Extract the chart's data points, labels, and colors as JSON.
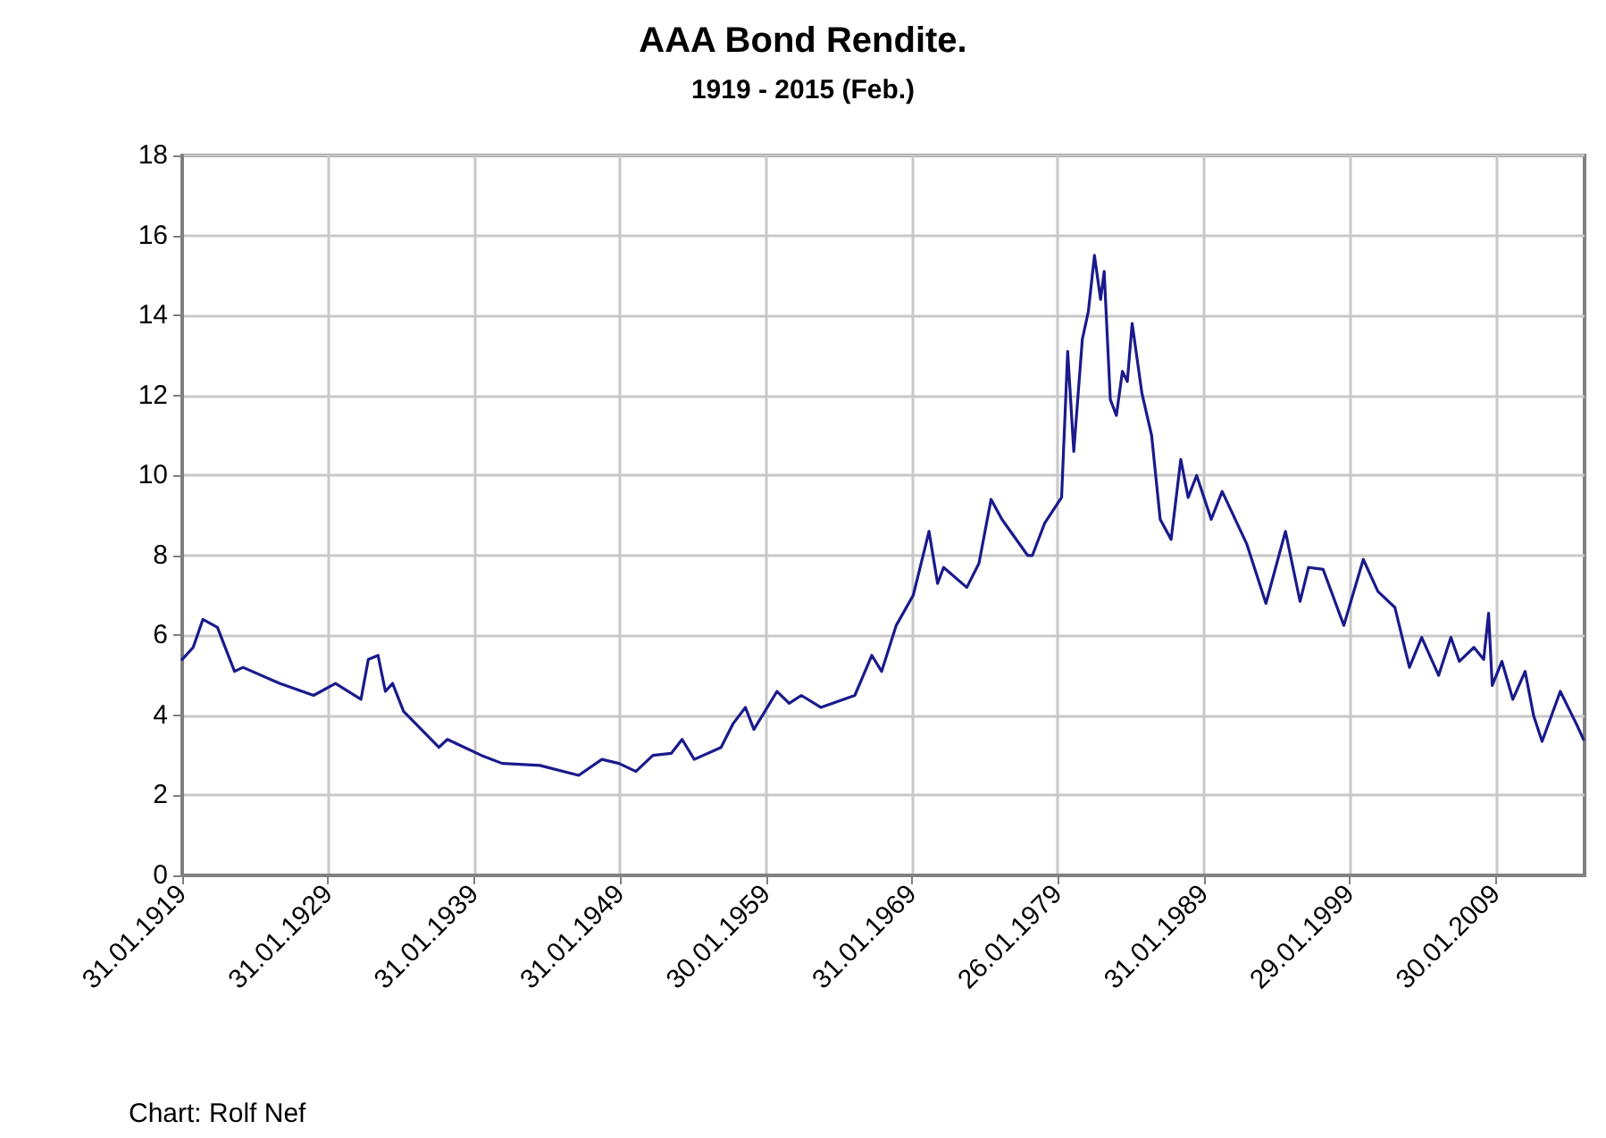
{
  "chart_data": {
    "type": "line",
    "title": "AAA Bond Rendite.",
    "subtitle": "1919 - 2015 (Feb.)",
    "annotations": [
      "Chart: Rolf Nef"
    ],
    "x": [
      "1919-02",
      "1919-11",
      "1920-07",
      "1921-07",
      "1922-09",
      "1923-04",
      "1925-10",
      "1928-02",
      "1929-08",
      "1931-05",
      "1931-11",
      "1932-07",
      "1933-01",
      "1933-07",
      "1934-04",
      "1936-09",
      "1937-04",
      "1939-08",
      "1941-01",
      "1943-08",
      "1946-04",
      "1947-11",
      "1949-01",
      "1950-03",
      "1951-05",
      "1952-08",
      "1953-05",
      "1954-03",
      "1956-01",
      "1956-11",
      "1957-09",
      "1958-04",
      "1959-11",
      "1960-09",
      "1961-07",
      "1962-11",
      "1965-03",
      "1966-05",
      "1967-01",
      "1968-01",
      "1969-03",
      "1970-04",
      "1970-11",
      "1971-04",
      "1972-11",
      "1973-09",
      "1974-07",
      "1975-04",
      "1977-01",
      "1977-05",
      "1978-03",
      "1979-05",
      "1979-10",
      "1980-03",
      "1980-10",
      "1981-03",
      "1981-08",
      "1982-01",
      "1982-04",
      "1982-09",
      "1983-02",
      "1983-07",
      "1983-11",
      "1984-03",
      "1984-11",
      "1985-07",
      "1986-02",
      "1986-11",
      "1987-07",
      "1988-01",
      "1988-08",
      "1989-08",
      "1990-05",
      "1992-01",
      "1993-05",
      "1994-09",
      "1995-09",
      "1996-04",
      "1997-04",
      "1998-09",
      "2000-01",
      "2001-01",
      "2002-03",
      "2003-03",
      "2004-01",
      "2005-03",
      "2006-01",
      "2006-08",
      "2007-08",
      "2008-04",
      "2008-08",
      "2008-11",
      "2009-07",
      "2010-04",
      "2011-02",
      "2011-09",
      "2012-04",
      "2013-07",
      "2014-08",
      "2015-02"
    ],
    "series": [
      {
        "color": "#1a1a8c",
        "values": [
          5.4,
          5.7,
          6.4,
          6.2,
          5.1,
          5.2,
          4.8,
          4.5,
          4.8,
          4.4,
          5.4,
          5.5,
          4.6,
          4.8,
          4.1,
          3.2,
          3.4,
          3.0,
          2.8,
          2.75,
          2.5,
          2.9,
          2.8,
          2.6,
          3.0,
          3.05,
          3.4,
          2.9,
          3.2,
          3.8,
          4.2,
          3.65,
          4.6,
          4.3,
          4.5,
          4.2,
          4.5,
          5.5,
          5.1,
          6.25,
          7.0,
          8.6,
          7.3,
          7.7,
          7.2,
          7.8,
          9.4,
          8.9,
          8.0,
          8.0,
          8.8,
          9.45,
          13.1,
          10.6,
          13.4,
          14.1,
          15.5,
          14.4,
          15.1,
          11.9,
          11.5,
          12.6,
          12.35,
          13.8,
          12.05,
          11.0,
          8.9,
          8.4,
          10.4,
          9.45,
          10.0,
          8.9,
          9.6,
          8.3,
          6.8,
          8.6,
          6.85,
          7.7,
          7.65,
          6.25,
          7.9,
          7.1,
          6.7,
          5.2,
          5.95,
          5.0,
          5.95,
          5.35,
          5.7,
          5.4,
          6.55,
          4.75,
          5.35,
          4.4,
          5.1,
          4.0,
          3.35,
          4.6,
          3.8,
          3.4
        ]
      }
    ],
    "xlim": [
      "1919-01-31",
      "2015-02-28"
    ],
    "xticks": [
      {
        "value": "1919-01-31",
        "label": "31.01.1919"
      },
      {
        "value": "1929-01-31",
        "label": "31.01.1929"
      },
      {
        "value": "1939-01-31",
        "label": "31.01.1939"
      },
      {
        "value": "1949-01-31",
        "label": "31.01.1949"
      },
      {
        "value": "1959-01-30",
        "label": "30.01.1959"
      },
      {
        "value": "1969-01-31",
        "label": "31.01.1969"
      },
      {
        "value": "1979-01-26",
        "label": "26.01.1979"
      },
      {
        "value": "1989-01-31",
        "label": "31.01.1989"
      },
      {
        "value": "1999-01-29",
        "label": "29.01.1999"
      },
      {
        "value": "2009-01-30",
        "label": "30.01.2009"
      }
    ],
    "ylim": [
      0,
      18
    ],
    "yticks": [
      0,
      2,
      4,
      6,
      8,
      10,
      12,
      14,
      16,
      18
    ],
    "grid": true,
    "marker": "none",
    "line_style": "solid"
  }
}
